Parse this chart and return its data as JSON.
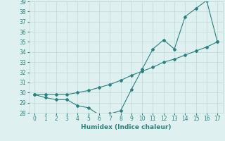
{
  "line1_x": [
    0,
    1,
    2,
    3,
    4,
    5,
    6,
    7,
    8,
    9,
    10,
    11,
    12,
    13,
    14,
    15,
    16,
    17
  ],
  "line1_y": [
    29.8,
    29.5,
    29.3,
    29.3,
    28.7,
    28.5,
    27.8,
    27.9,
    28.2,
    30.3,
    32.3,
    34.3,
    35.2,
    34.3,
    37.5,
    38.3,
    39.1,
    35.0
  ],
  "line2_x": [
    0,
    1,
    2,
    3,
    4,
    5,
    6,
    7,
    8,
    9,
    10,
    11,
    12,
    13,
    14,
    15,
    16,
    17
  ],
  "line2_y": [
    29.8,
    29.8,
    29.8,
    29.8,
    30.0,
    30.2,
    30.5,
    30.8,
    31.2,
    31.7,
    32.1,
    32.5,
    33.0,
    33.3,
    33.7,
    34.1,
    34.5,
    35.0
  ],
  "line_color": "#2e7f7f",
  "bg_color": "#dff0f0",
  "grid_color": "#c0d8d8",
  "xlabel": "Humidex (Indice chaleur)",
  "ylim": [
    28,
    39
  ],
  "xlim": [
    -0.5,
    17.5
  ],
  "yticks": [
    28,
    29,
    30,
    31,
    32,
    33,
    34,
    35,
    36,
    37,
    38,
    39
  ],
  "xticks": [
    0,
    1,
    2,
    3,
    4,
    5,
    6,
    7,
    8,
    9,
    10,
    11,
    12,
    13,
    14,
    15,
    16,
    17
  ],
  "xlabel_fontsize": 6.5,
  "tick_fontsize": 5.5,
  "marker": "D",
  "markersize": 2.0,
  "linewidth": 0.8
}
